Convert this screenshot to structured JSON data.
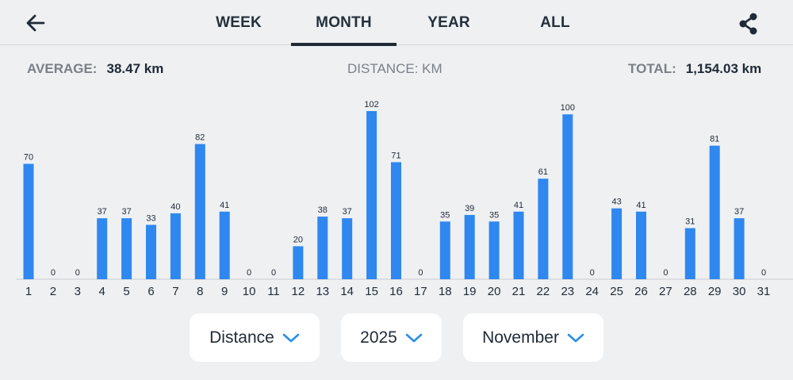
{
  "header": {
    "tabs": [
      {
        "label": "WEEK",
        "active": false
      },
      {
        "label": "MONTH",
        "active": true
      },
      {
        "label": "YEAR",
        "active": false
      },
      {
        "label": "ALL",
        "active": false
      }
    ],
    "back_icon": "arrow-left-icon",
    "share_icon": "share-icon"
  },
  "stats": {
    "average_label": "AVERAGE:",
    "average_value": "38.47 km",
    "unit_label": "DISTANCE: KM",
    "total_label": "TOTAL:",
    "total_value": "1,154.03 km"
  },
  "chart_data": {
    "type": "bar",
    "categories": [
      "1",
      "2",
      "3",
      "4",
      "5",
      "6",
      "7",
      "8",
      "9",
      "10",
      "11",
      "12",
      "13",
      "14",
      "15",
      "16",
      "17",
      "18",
      "19",
      "20",
      "21",
      "22",
      "23",
      "24",
      "25",
      "26",
      "27",
      "28",
      "29",
      "30",
      "31"
    ],
    "values": [
      70,
      0,
      0,
      37,
      37,
      33,
      40,
      82,
      41,
      0,
      0,
      20,
      38,
      37,
      102,
      71,
      0,
      35,
      39,
      35,
      41,
      61,
      100,
      0,
      43,
      41,
      0,
      31,
      81,
      37,
      0
    ],
    "xlabel": "",
    "ylabel": "",
    "ylim": [
      0,
      102
    ],
    "grid": false,
    "bar_color": "#2f87f0"
  },
  "filters": {
    "metric": "Distance",
    "year": "2025",
    "month": "November"
  },
  "colors": {
    "accent": "#2f87f0",
    "background": "#eef0f2",
    "chevron": "#2a8ee8"
  }
}
